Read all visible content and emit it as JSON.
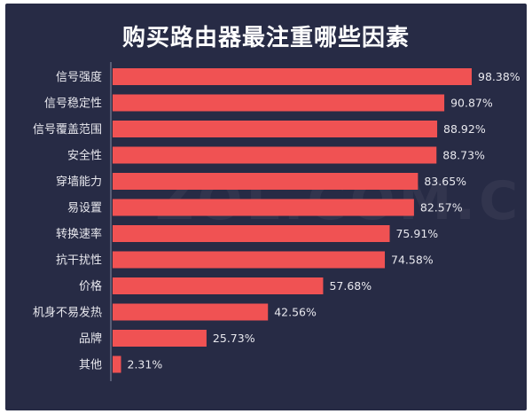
{
  "chart_data": {
    "type": "bar",
    "orientation": "horizontal",
    "title": "购买路由器最注重哪些因素",
    "categories": [
      "信号强度",
      "信号稳定性",
      "信号覆盖范围",
      "安全性",
      "穿墙能力",
      "易设置",
      "转换速率",
      "抗干扰性",
      "价格",
      "机身不易发热",
      "品牌",
      "其他"
    ],
    "values": [
      98.38,
      90.87,
      88.92,
      88.73,
      83.65,
      82.57,
      75.91,
      74.58,
      57.68,
      42.56,
      25.73,
      2.31
    ],
    "value_labels": [
      "98.38%",
      "90.87%",
      "88.92%",
      "88.73%",
      "83.65%",
      "82.57%",
      "75.91%",
      "74.58%",
      "57.68%",
      "42.56%",
      "25.73%",
      "2.31%"
    ],
    "xlim": [
      0,
      100
    ],
    "grid": false,
    "bar_color": "#f05253",
    "background_color": "#272b45",
    "text_color": "#ffffff",
    "label_color": "#e8e8ee"
  },
  "watermark": "ZOL.COM.CN"
}
